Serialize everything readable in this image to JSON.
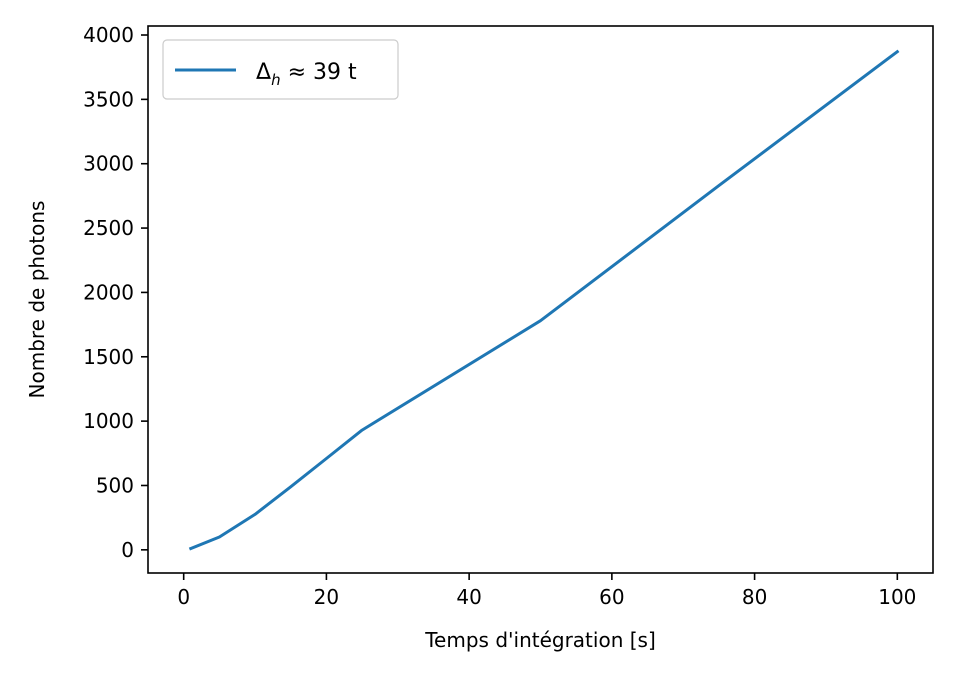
{
  "chart_data": {
    "type": "line",
    "xlabel": "Temps d'intégration [s]",
    "ylabel": "Nombre de photons",
    "xlim": [
      -5,
      105
    ],
    "ylim": [
      -180,
      4070
    ],
    "xticks": [
      0,
      20,
      40,
      60,
      80,
      100
    ],
    "yticks": [
      0,
      500,
      1000,
      1500,
      2000,
      2500,
      3000,
      3500,
      4000
    ],
    "grid": false,
    "legend_position": "upper-left",
    "series": [
      {
        "name": "Δh ≈ 39 t",
        "legend": {
          "main": "Δ",
          "sub": "h",
          "rest": " ≈ 39 t"
        },
        "color": "#1f77b4",
        "x": [
          1,
          5,
          10,
          15,
          20,
          25,
          50,
          75,
          100
        ],
        "y": [
          10,
          100,
          275,
          490,
          710,
          930,
          1780,
          2830,
          3870
        ]
      }
    ]
  }
}
